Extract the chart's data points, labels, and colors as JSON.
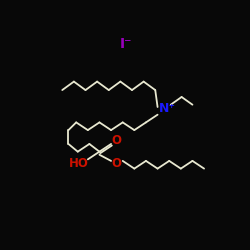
{
  "background_color": "#080808",
  "bond_color": "#e8e8d0",
  "iodide_color": "#9900bb",
  "nitrogen_color": "#1a1aff",
  "oxygen_color": "#cc1100",
  "iodide_label": "I⁻",
  "nitrogen_label": "N⁺",
  "ho_label": "HO",
  "o_label1": "O",
  "o_label2": "O",
  "fig_width": 2.5,
  "fig_height": 2.5,
  "dpi": 100
}
